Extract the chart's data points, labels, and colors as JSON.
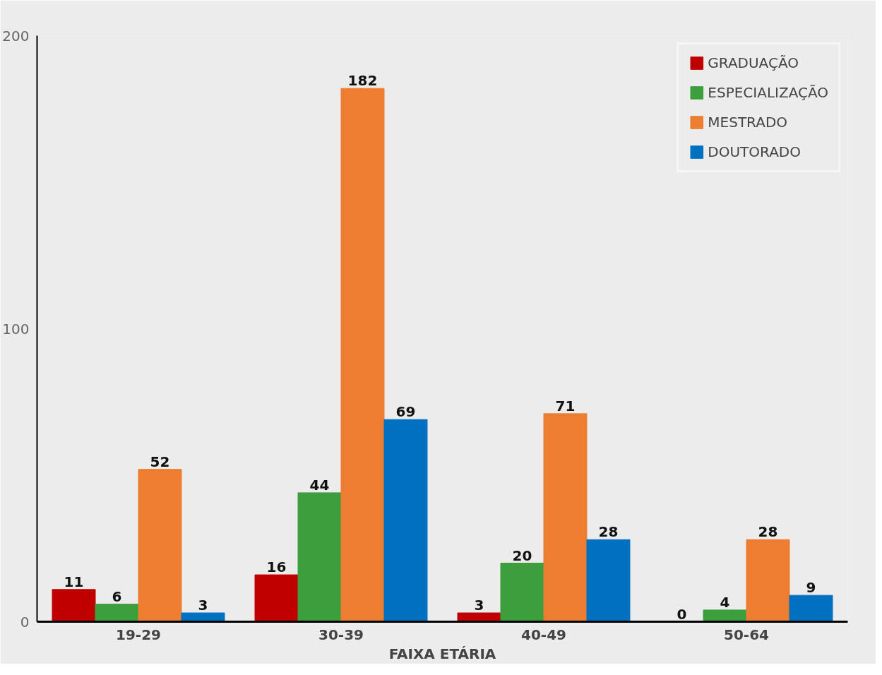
{
  "chart_data": {
    "type": "bar",
    "xlabel": "FAIXA ETÁRIA",
    "categories": [
      "19-29",
      "30-39",
      "40-49",
      "50-64"
    ],
    "series": [
      {
        "name": "GRADUAÇÃO",
        "color": "#c00000",
        "values": [
          11,
          16,
          3,
          0
        ]
      },
      {
        "name": "ESPECIALIZAÇÃO",
        "color": "#3c9e3c",
        "values": [
          6,
          44,
          20,
          4
        ]
      },
      {
        "name": "MESTRADO",
        "color": "#ed7d31",
        "values": [
          52,
          182,
          71,
          28
        ]
      },
      {
        "name": "DOUTORADO",
        "color": "#0070c0",
        "values": [
          3,
          69,
          28,
          9
        ]
      }
    ],
    "ylim": [
      0,
      200
    ],
    "yticks": [
      0,
      100,
      200
    ],
    "data_labels": true,
    "legend": "top right",
    "grid": false
  }
}
